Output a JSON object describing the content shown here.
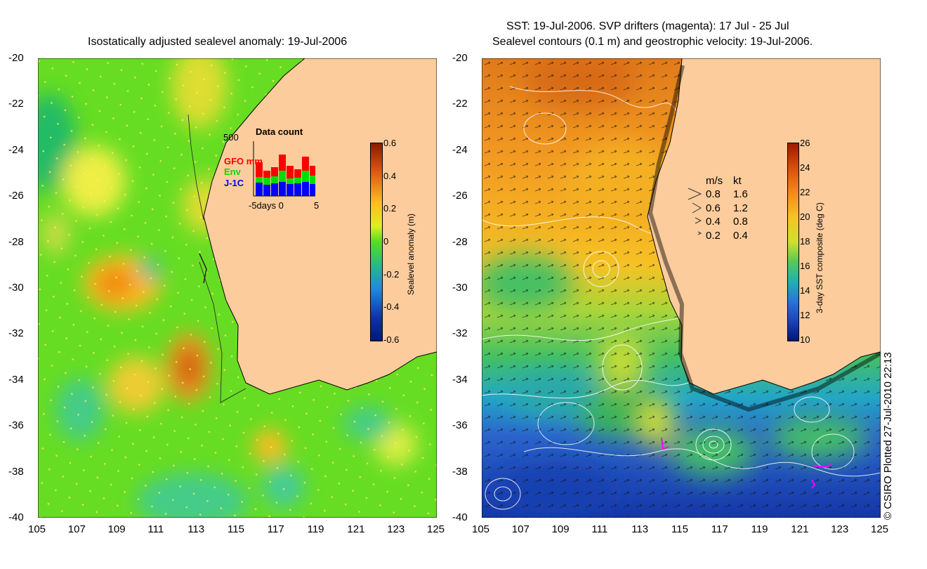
{
  "left_panel": {
    "title": "Isostatically adjusted sealevel anomaly: 19-Jul-2006",
    "colorbar": {
      "label": "Sealevel anomaly (m)",
      "ticks": [
        "0.6",
        "0.4",
        "0.2",
        "0",
        "-0.2",
        "-0.4",
        "-0.6"
      ]
    },
    "data_count_inset": {
      "title": "Data count",
      "y_max_label": "500",
      "x_label": "-5days 0",
      "x_right_label": "5",
      "legend": [
        {
          "label": "GFO mm",
          "color": "#ff0000"
        },
        {
          "label": "Env",
          "color": "#00dd00"
        },
        {
          "label": "J-1C",
          "color": "#0000ff"
        }
      ]
    }
  },
  "right_panel": {
    "title_line1": "SST: 19-Jul-2006. SVP drifters (magenta): 17 Jul - 25 Jul",
    "title_line2": "Sealevel contours (0.1 m) and geostrophic velocity: 19-Jul-2006.",
    "colorbar": {
      "label": "3-day SST composite (deg C)",
      "ticks": [
        "26",
        "24",
        "22",
        "20",
        "18",
        "16",
        "14",
        "12",
        "10"
      ]
    },
    "velocity_legend": {
      "header_ms": "m/s",
      "header_kt": "kt",
      "rows": [
        {
          "ms": "0.8",
          "kt": "1.6",
          "scale": 0.8
        },
        {
          "ms": "0.6",
          "kt": "1.2",
          "scale": 0.6
        },
        {
          "ms": "0.4",
          "kt": "0.8",
          "scale": 0.4
        },
        {
          "ms": "0.2",
          "kt": "0.4",
          "scale": 0.2
        }
      ]
    }
  },
  "axes": {
    "y_ticks": [
      "-20",
      "-22",
      "-24",
      "-26",
      "-28",
      "-30",
      "-32",
      "-34",
      "-36",
      "-38",
      "-40"
    ],
    "x_ticks": [
      "105",
      "107",
      "109",
      "111",
      "113",
      "115",
      "117",
      "119",
      "121",
      "123",
      "125"
    ]
  },
  "credit": "© CSIRO Plotted 27-Jul-2010 22:13",
  "colors": {
    "land": "#fccc9c",
    "ocean_green": "#66dd22",
    "sst_cold": "#1844c0",
    "drifter": "#ff00ff"
  }
}
